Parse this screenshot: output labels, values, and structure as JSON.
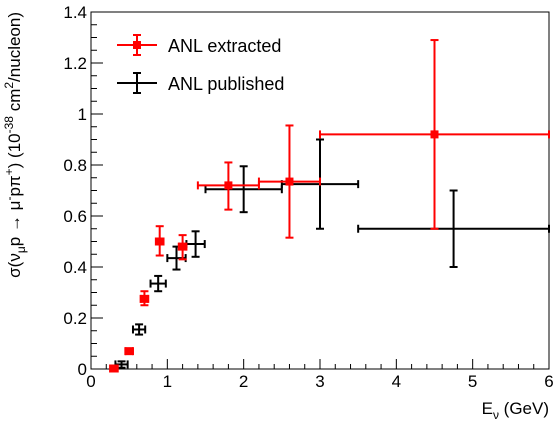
{
  "chart_data": {
    "type": "scatter",
    "title": "",
    "xlabel": {
      "main": "E",
      "sub": "ν",
      "rest": " (GeV)"
    },
    "ylabel": {
      "parts": [
        {
          "t": "σ(ν",
          "k": "n"
        },
        {
          "t": "μ",
          "k": "sub"
        },
        {
          "t": "p → μ",
          "k": "n"
        },
        {
          "t": "-",
          "k": "sup"
        },
        {
          "t": "pπ",
          "k": "n"
        },
        {
          "t": "+",
          "k": "sup"
        },
        {
          "t": ") (10",
          "k": "n"
        },
        {
          "t": "-38",
          "k": "sup"
        },
        {
          "t": " cm",
          "k": "n"
        },
        {
          "t": "2",
          "k": "sup"
        },
        {
          "t": "/nucleon)",
          "k": "n"
        }
      ]
    },
    "xlim": [
      0,
      6
    ],
    "ylim": [
      0,
      1.4
    ],
    "x_ticks": [
      0,
      1,
      2,
      3,
      4,
      5,
      6
    ],
    "x_tick_labels": [
      "0",
      "1",
      "2",
      "3",
      "4",
      "5",
      "6"
    ],
    "y_ticks": [
      0,
      0.2,
      0.4,
      0.6,
      0.8,
      1.0,
      1.2,
      1.4
    ],
    "y_tick_labels": [
      "0",
      "0.2",
      "0.4",
      "0.6",
      "0.8",
      "1",
      "1.2",
      "1.4"
    ],
    "grid": false,
    "legend_position": "top-left",
    "series": [
      {
        "name": "ANL extracted",
        "color": "#ff0000",
        "marker": "square",
        "points": [
          {
            "x": 0.3,
            "xlo": 0.25,
            "xhi": 0.35,
            "y": 0.002,
            "ylo": 0.0,
            "yhi": 0.006
          },
          {
            "x": 0.5,
            "xlo": 0.45,
            "xhi": 0.55,
            "y": 0.07,
            "ylo": 0.06,
            "yhi": 0.08
          },
          {
            "x": 0.7,
            "xlo": 0.65,
            "xhi": 0.75,
            "y": 0.275,
            "ylo": 0.25,
            "yhi": 0.305
          },
          {
            "x": 0.9,
            "xlo": 0.85,
            "xhi": 0.95,
            "y": 0.5,
            "ylo": 0.445,
            "yhi": 0.56
          },
          {
            "x": 1.2,
            "xlo": 1.15,
            "xhi": 1.25,
            "y": 0.48,
            "ylo": 0.43,
            "yhi": 0.525
          },
          {
            "x": 1.8,
            "xlo": 1.4,
            "xhi": 2.2,
            "y": 0.72,
            "ylo": 0.625,
            "yhi": 0.81
          },
          {
            "x": 2.6,
            "xlo": 2.2,
            "xhi": 3.0,
            "y": 0.735,
            "ylo": 0.515,
            "yhi": 0.955
          },
          {
            "x": 4.5,
            "xlo": 3.0,
            "xhi": 6.0,
            "y": 0.92,
            "ylo": 0.55,
            "yhi": 1.29
          }
        ]
      },
      {
        "name": "ANL published",
        "color": "#000000",
        "marker": "none",
        "points": [
          {
            "x": 0.4,
            "xlo": 0.32,
            "xhi": 0.48,
            "y": 0.018,
            "ylo": 0.005,
            "yhi": 0.03
          },
          {
            "x": 0.63,
            "xlo": 0.55,
            "xhi": 0.71,
            "y": 0.155,
            "ylo": 0.135,
            "yhi": 0.175
          },
          {
            "x": 0.88,
            "xlo": 0.78,
            "xhi": 0.98,
            "y": 0.335,
            "ylo": 0.305,
            "yhi": 0.365
          },
          {
            "x": 1.12,
            "xlo": 1.0,
            "xhi": 1.24,
            "y": 0.435,
            "ylo": 0.39,
            "yhi": 0.48
          },
          {
            "x": 1.37,
            "xlo": 1.25,
            "xhi": 1.49,
            "y": 0.49,
            "ylo": 0.44,
            "yhi": 0.54
          },
          {
            "x": 2.0,
            "xlo": 1.5,
            "xhi": 2.5,
            "y": 0.705,
            "ylo": 0.615,
            "yhi": 0.795
          },
          {
            "x": 3.0,
            "xlo": 2.5,
            "xhi": 3.5,
            "y": 0.725,
            "ylo": 0.55,
            "yhi": 0.9
          },
          {
            "x": 4.75,
            "xlo": 3.5,
            "xhi": 6.0,
            "y": 0.55,
            "ylo": 0.4,
            "yhi": 0.7
          }
        ]
      }
    ]
  }
}
